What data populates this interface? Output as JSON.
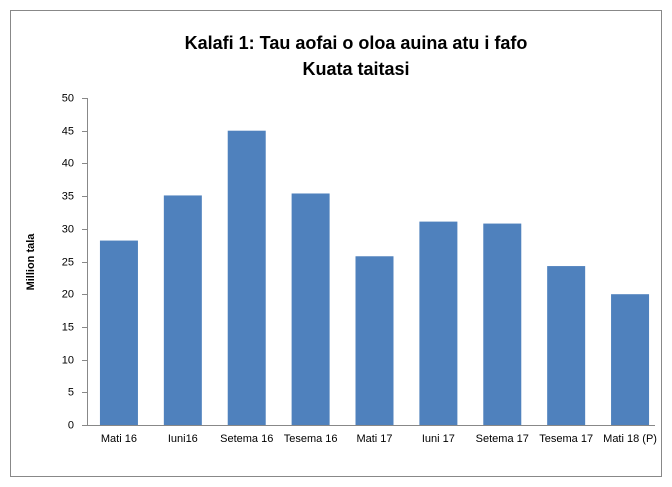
{
  "chart_data": {
    "type": "bar",
    "title": "Kalafi 1: Tau aofai o oloa auina atu i fafo",
    "subtitle": "Kuata taitasi",
    "y_label": "Million tala",
    "categories": [
      "Mati 16",
      "Iuni16",
      "Setema 16",
      "Tesema 16",
      "Mati 17",
      "Iuni 17",
      "Setema 17",
      "Tesema 17",
      "Mati 18 (P)"
    ],
    "values": [
      28.2,
      35.1,
      45,
      35.4,
      25.8,
      31.1,
      30.8,
      24.3,
      20
    ],
    "color": "#4f81bd",
    "ylim": [
      0,
      50
    ],
    "yticks": [
      0,
      5,
      10,
      15,
      20,
      25,
      30,
      35,
      40,
      45,
      50
    ],
    "grid": false
  }
}
